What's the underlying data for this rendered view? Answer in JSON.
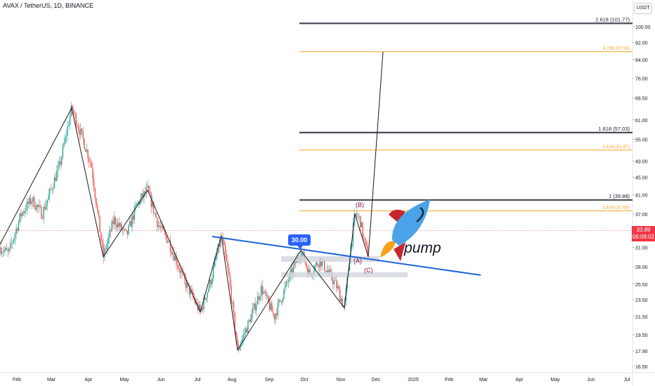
{
  "header": {
    "title": "AVAX / TetherUS, 1D, BINANCE",
    "currency": "USDT"
  },
  "price_badge": {
    "price": "33.89",
    "countdown": "06:09:02"
  },
  "annotation": {
    "callout": "30.00",
    "sticker_text": "pump"
  },
  "colors": {
    "up": "#26a69a",
    "down": "#ef5350",
    "trend": "#1e64d9",
    "fib_gray": "#4a4e59",
    "fib_orange": "#f7a21b"
  },
  "chart_data": {
    "type": "candlestick",
    "title": "AVAX / TetherUS, 1D, BINANCE",
    "yscale": "log",
    "ylim": [
      16.0,
      108.0
    ],
    "y_ticks": [
      "100.00",
      "92.00",
      "84.00",
      "76.00",
      "68.50",
      "61.00",
      "55.00",
      "49.00",
      "45.00",
      "41.00",
      "37.00",
      "34.00",
      "31.00",
      "28.00",
      "25.50",
      "23.50",
      "21.50",
      "19.50",
      "17.90",
      "16.50"
    ],
    "x_ticks": [
      "Feb",
      "Mar",
      "Apr",
      "May",
      "Jun",
      "Jul",
      "Aug",
      "Sep",
      "Oct",
      "Nov",
      "Dec",
      "2025",
      "Feb",
      "Mar",
      "Apr",
      "May",
      "Jun",
      "Jul"
    ],
    "fib_levels": [
      {
        "label": "2.618 (101.77)",
        "value": 101.77,
        "group": "gray"
      },
      {
        "label": "4.236 (87.54)",
        "value": 87.54,
        "group": "orange"
      },
      {
        "label": "1.618 (57.03)",
        "value": 57.03,
        "group": "gray"
      },
      {
        "label": "2.618 (51.97)",
        "value": 51.97,
        "group": "orange"
      },
      {
        "label": "1 (39.88)",
        "value": 39.88,
        "group": "gray"
      },
      {
        "label": "1.618 (37.65)",
        "value": 37.65,
        "group": "orange"
      }
    ],
    "wave_labels": [
      "(B)",
      "(A)",
      "(C)"
    ],
    "last_price": 33.89,
    "callout_price": 30.0
  }
}
